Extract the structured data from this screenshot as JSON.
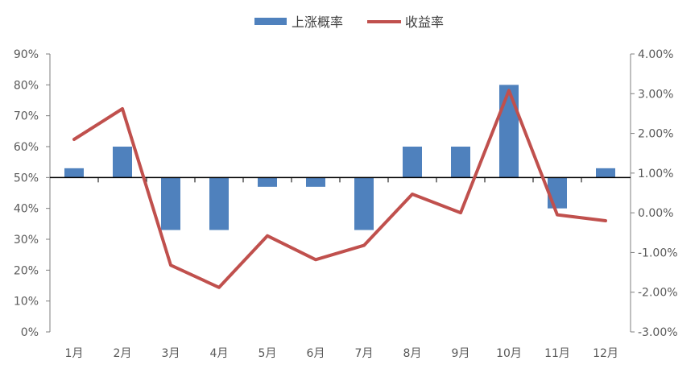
{
  "chart_data": {
    "type": "bar+line",
    "categories": [
      "1月",
      "2月",
      "3月",
      "4月",
      "5月",
      "6月",
      "7月",
      "8月",
      "9月",
      "10月",
      "11月",
      "12月"
    ],
    "series": [
      {
        "name": "上涨概率",
        "type": "bar",
        "axis": "left",
        "color": "#4F81BD",
        "values": [
          53,
          60,
          33,
          33,
          47,
          47,
          33,
          60,
          60,
          80,
          40,
          53
        ]
      },
      {
        "name": "收益率",
        "type": "line",
        "axis": "right",
        "color": "#C0504D",
        "values": [
          1.85,
          2.62,
          -1.32,
          -1.88,
          -0.58,
          -1.18,
          -0.82,
          0.47,
          0.0,
          3.08,
          -0.05,
          -0.2
        ]
      }
    ],
    "y_left": {
      "ylim": [
        0,
        90
      ],
      "baseline": 50,
      "ticks": [
        0,
        10,
        20,
        30,
        40,
        50,
        60,
        70,
        80,
        90
      ],
      "tick_labels": [
        "0%",
        "10%",
        "20%",
        "30%",
        "40%",
        "50%",
        "60%",
        "70%",
        "80%",
        "90%"
      ]
    },
    "y_right": {
      "ylim": [
        -3,
        4
      ],
      "ticks": [
        -3,
        -2,
        -1,
        0,
        1,
        2,
        3,
        4
      ],
      "tick_labels": [
        "-3.00%",
        "-2.00%",
        "-1.00%",
        "0.00%",
        "1.00%",
        "2.00%",
        "3.00%",
        "4.00%"
      ]
    },
    "legend": {
      "position": "top-center"
    },
    "grid": false
  }
}
